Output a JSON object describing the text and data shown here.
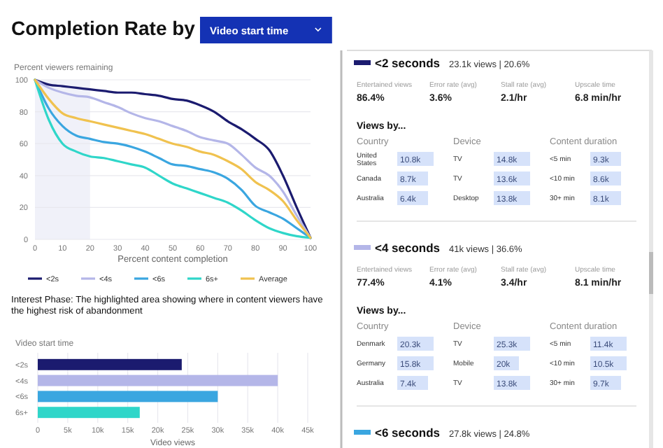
{
  "chart_data": [
    {
      "type": "line",
      "title": "Completion Rate by",
      "subtitle": "Video start time",
      "xlabel": "Percent content completion",
      "ylabel": "Percent viewers remaining",
      "xlim": [
        0,
        100
      ],
      "ylim": [
        0,
        100
      ],
      "xticks": [
        0,
        10,
        20,
        30,
        40,
        50,
        60,
        70,
        80,
        90,
        100
      ],
      "yticks": [
        0,
        20,
        40,
        60,
        80,
        100
      ],
      "grid": "y",
      "legend": "bottom",
      "marker": "none",
      "line_style": "solid",
      "x": [
        0,
        5,
        10,
        15,
        20,
        25,
        30,
        35,
        40,
        45,
        50,
        55,
        60,
        65,
        70,
        75,
        80,
        85,
        90,
        95,
        100
      ],
      "series": [
        {
          "name": "<2s",
          "color": "#1b1b6f",
          "values": [
            100,
            97,
            96,
            95,
            94,
            93,
            92,
            92,
            91,
            90,
            88,
            87,
            84,
            80,
            74,
            69,
            63,
            56,
            40,
            20,
            1
          ]
        },
        {
          "name": "<4s",
          "color": "#b4b6e8",
          "values": [
            100,
            95,
            92,
            90,
            89,
            86,
            83,
            79,
            76,
            74,
            71,
            68,
            64,
            62,
            60,
            53,
            45,
            40,
            30,
            15,
            1
          ]
        },
        {
          "name": "<6s",
          "color": "#3aa6e0",
          "values": [
            100,
            82,
            71,
            65,
            63,
            61,
            60,
            58,
            55,
            51,
            47,
            46,
            44,
            42,
            38,
            31,
            21,
            17,
            13,
            7,
            1
          ]
        },
        {
          "name": "6s+",
          "color": "#2fd6c9",
          "values": [
            100,
            75,
            60,
            55,
            52,
            51,
            49,
            47,
            45,
            40,
            35,
            32,
            29,
            26,
            23,
            18,
            12,
            7,
            4,
            2,
            1
          ]
        },
        {
          "name": "Average",
          "color": "#f0c24f",
          "values": [
            100,
            88,
            79,
            76,
            74,
            72,
            70,
            68,
            66,
            63,
            60,
            58,
            55,
            53,
            49,
            44,
            36,
            31,
            24,
            12,
            1
          ]
        }
      ],
      "bands": [
        {
          "axis": "x",
          "from": 0,
          "to": 20,
          "color": "#f0f1f9"
        }
      ],
      "annotations": [
        "Interest Phase: The highlighted area showing where in content viewers have the highest risk of abandonment"
      ]
    },
    {
      "type": "bar",
      "orientation": "horizontal",
      "ylabel": "Video start time",
      "xlabel": "Video views",
      "categories": [
        "<2s",
        "<4s",
        "<6s",
        "6s+"
      ],
      "values": [
        24000,
        40000,
        30000,
        17000
      ],
      "colors": [
        "#1b1b6f",
        "#b4b6e8",
        "#3aa6e0",
        "#2fd6c9"
      ],
      "xlim": [
        0,
        45000
      ],
      "grid": "x",
      "xticks": [
        {
          "value": 0,
          "label": "0"
        },
        {
          "value": 5000,
          "label": "5k"
        },
        {
          "value": 10000,
          "label": "10k"
        },
        {
          "value": 15000,
          "label": "15k"
        },
        {
          "value": 20000,
          "label": "20k"
        },
        {
          "value": 25000,
          "label": "25k"
        },
        {
          "value": 30000,
          "label": "30k"
        },
        {
          "value": 35000,
          "label": "35k"
        },
        {
          "value": 40000,
          "label": "40k"
        },
        {
          "value": 45000,
          "label": "45k"
        }
      ]
    },
    {
      "type": "other",
      "title": "<2 seconds",
      "subtitle": "23.1k views  |  20.6%",
      "color": "#1b1b6f",
      "annotations": [
        "Entertained views",
        "Error rate (avg)",
        "Stall rate (avg)",
        "Upscale time",
        "86.4%",
        "3.6%",
        "2.1/hr",
        "6.8 min/hr",
        "Views by...",
        "Country",
        "Device",
        "Content duration",
        "United States",
        "10.8k",
        "TV",
        "14.8k",
        "<5 min",
        "9.3k",
        "Canada",
        "8.7k",
        "TV",
        "13.6k",
        "<10 min",
        "8.6k",
        "Australia",
        "6.4k",
        "Desktop",
        "13.8k",
        "30+ min",
        "8.1k"
      ]
    },
    {
      "type": "other",
      "title": "<4 seconds",
      "subtitle": "41k views  |  36.6%",
      "color": "#b4b6e8",
      "annotations": [
        "Entertained views",
        "Error rate (avg)",
        "Stall rate (avg)",
        "Upscale time",
        "77.4%",
        "4.1%",
        "3.4/hr",
        "8.1 min/hr",
        "Views by...",
        "Country",
        "Device",
        "Content duration",
        "Denmark",
        "20.3k",
        "TV",
        "25.3k",
        "<5 min",
        "11.4k",
        "Germany",
        "15.8k",
        "Mobile",
        "20k",
        "<10 min",
        "10.5k",
        "Australia",
        "7.4k",
        "TV",
        "13.8k",
        "30+ min",
        "9.7k"
      ]
    },
    {
      "type": "other",
      "title": "<6 seconds",
      "subtitle": "27.8k views  |  24.8%",
      "color": "#3aa6e0"
    }
  ]
}
